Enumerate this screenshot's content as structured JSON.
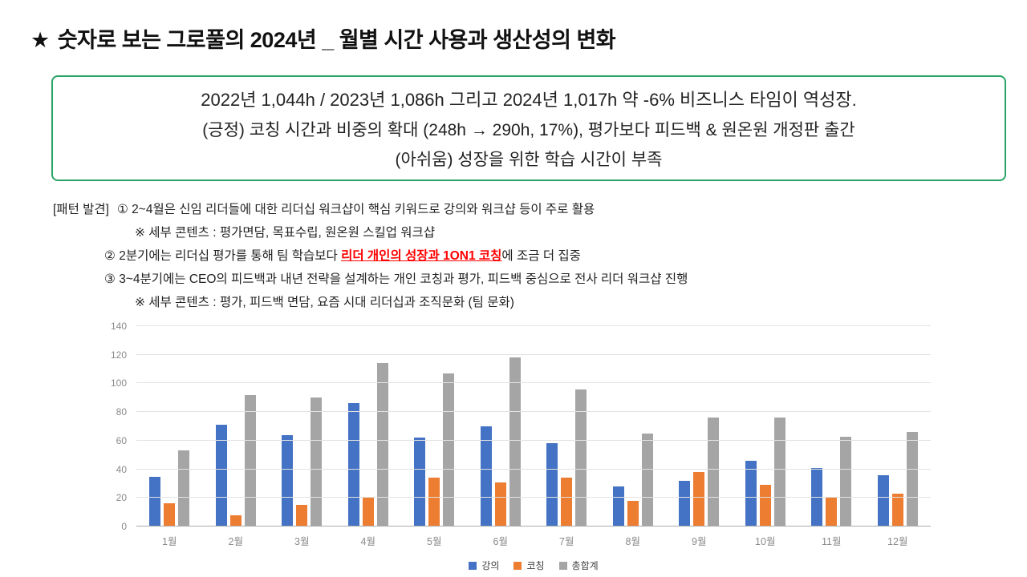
{
  "page": {
    "title_star": "★",
    "title": "숫자로 보는 그로풀의 2024년 _ 월별 시간 사용과 생산성의 변화"
  },
  "summary_box": {
    "line1": "2022년 1,044h / 2023년 1,086h 그리고 2024년 1,017h 약 -6% 비즈니스 타임이 역성장.",
    "line2": "(긍정) 코칭 시간과 비중의 확대 (248h → 290h, 17%), 평가보다 피드백 & 원온원 개정판 출간",
    "line3": "(아쉬움) 성장을 위한 학습 시간이 부족"
  },
  "patterns": {
    "label": "[패턴 발견]",
    "item1": "① 2~4월은 신임 리더들에 대한 리더십 워크샵이 핵심 키워드로 강의와 워크샵 등이 주로 활용",
    "note1": "※ 세부 콘텐츠 : 평가면담, 목표수립, 원온원 스킬업 워크샵",
    "item2_prefix": "② 2분기에는 리더십 평가를 통해 팀 학습보다 ",
    "item2_highlight": "리더 개인의 성장과 1ON1 코칭",
    "item2_suffix": "에 조금 더 집중",
    "item3": "③ 3~4분기에는 CEO의 피드백과 내년 전략을 설계하는 개인 코칭과 평가, 피드백 중심으로 전사 리더 워크샵 진행",
    "note3": "※ 세부 콘텐츠 : 평가, 피드백 면담, 요즘 시대 리더십과 조직문화 (팀 문화)"
  },
  "chart_data": {
    "type": "bar",
    "categories": [
      "1월",
      "2월",
      "3월",
      "4월",
      "5월",
      "6월",
      "7월",
      "8월",
      "9월",
      "10월",
      "11월",
      "12월"
    ],
    "series": [
      {
        "name": "강의",
        "color": "#4472C4",
        "values": [
          35,
          71,
          64,
          86,
          62,
          70,
          58,
          28,
          32,
          46,
          41,
          36
        ]
      },
      {
        "name": "코칭",
        "color": "#ED7D31",
        "values": [
          16,
          8,
          15,
          20,
          34,
          31,
          34,
          18,
          38,
          29,
          21,
          23
        ]
      },
      {
        "name": "총합계",
        "color": "#A5A5A5",
        "values": [
          53,
          92,
          90,
          114,
          107,
          118,
          96,
          65,
          76,
          76,
          63,
          66
        ]
      }
    ],
    "title": "",
    "xlabel": "",
    "ylabel": "",
    "ylim": [
      0,
      140
    ],
    "ytick_step": 20,
    "grid": true,
    "legend_position": "bottom"
  },
  "colors": {
    "box_border": "#28A465",
    "highlight_red": "#FF0000",
    "series_lecture": "#4472C4",
    "series_coaching": "#ED7D31",
    "series_total": "#A5A5A5",
    "axis_text": "#8A8A8A"
  }
}
